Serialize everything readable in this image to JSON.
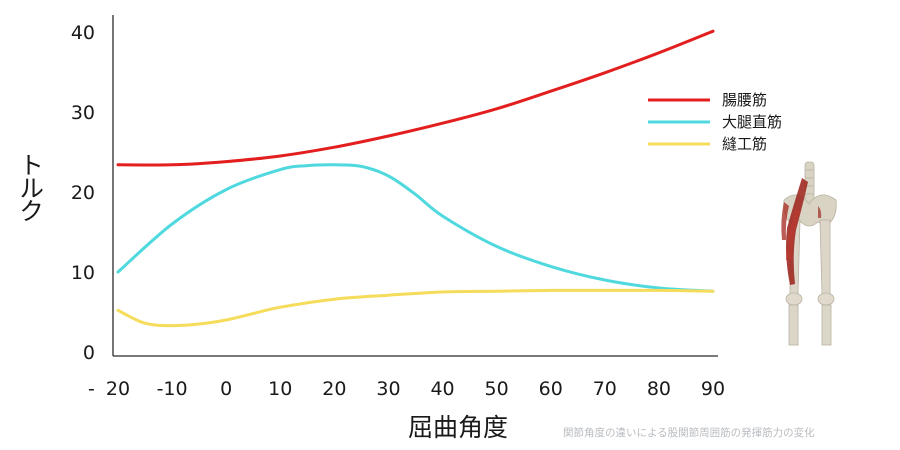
{
  "chart_data": {
    "type": "line",
    "xlabel": "屈曲角度",
    "ylabel": "トルク",
    "xlim": [
      -20,
      90
    ],
    "ylim": [
      0,
      40
    ],
    "x_ticks": [
      "20",
      "-10",
      "0",
      "10",
      "20",
      "30",
      "40",
      "50",
      "60",
      "70",
      "80",
      "90"
    ],
    "x_tick_values": [
      -20,
      -10,
      0,
      10,
      20,
      30,
      40,
      50,
      60,
      70,
      80,
      90
    ],
    "x_tick_prefix": "-",
    "y_ticks": [
      "0",
      "10",
      "20",
      "30",
      "40"
    ],
    "y_tick_values": [
      0,
      10,
      20,
      30,
      40
    ],
    "legend_position": "top-right",
    "grid": false,
    "caption": "関節角度の違いによる股関節周囲筋の発揮筋力の変化",
    "series": [
      {
        "name": "腸腰筋",
        "color": "#e31e1e",
        "x": [
          -20,
          -10,
          0,
          10,
          20,
          30,
          40,
          50,
          60,
          70,
          80,
          90
        ],
        "y": [
          23.4,
          23.4,
          23.8,
          24.5,
          25.6,
          27.0,
          28.6,
          30.4,
          32.6,
          34.9,
          37.4,
          40.1
        ]
      },
      {
        "name": "大腿直筋",
        "color": "#4fd9df",
        "x": [
          -20,
          -10,
          0,
          10,
          15,
          20,
          25,
          30,
          35,
          40,
          50,
          60,
          70,
          80,
          90
        ],
        "y": [
          10.0,
          16.0,
          20.3,
          22.8,
          23.3,
          23.4,
          23.2,
          22.0,
          19.7,
          17.0,
          13.2,
          10.7,
          9.0,
          8.0,
          7.6
        ]
      },
      {
        "name": "縫工筋",
        "color": "#f5dc5a",
        "x": [
          -20,
          -15,
          -10,
          -5,
          0,
          5,
          10,
          20,
          30,
          40,
          50,
          60,
          70,
          80,
          90
        ],
        "y": [
          5.2,
          3.6,
          3.3,
          3.5,
          4.0,
          4.8,
          5.6,
          6.6,
          7.1,
          7.5,
          7.6,
          7.7,
          7.7,
          7.7,
          7.6
        ]
      }
    ]
  },
  "illustration": {
    "icon": "hip-muscle-anatomy-icon",
    "muscle_color": "#9e2a22",
    "bone_color": "#d9d3c4"
  }
}
